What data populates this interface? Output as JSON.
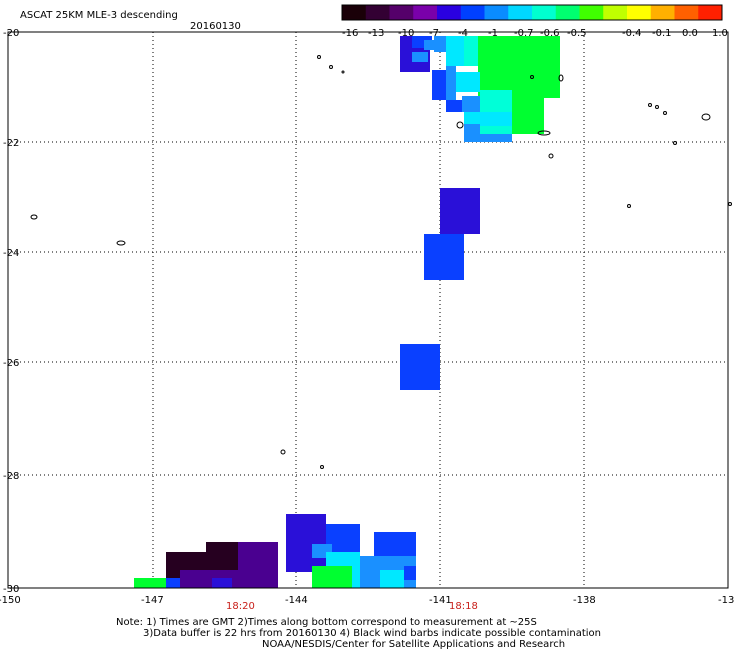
{
  "header": {
    "title": "ASCAT 25KM MLE-3 descending",
    "date": "20160130"
  },
  "colorbar": {
    "labels": [
      "-16",
      "-13",
      "-10",
      "-7",
      "-4",
      "-1",
      "-0.7",
      "-0.6",
      "-0.5",
      "-0.4",
      "-0.1",
      "0.0",
      "1.0"
    ],
    "colors": [
      "#1a0008",
      "#330033",
      "#55006a",
      "#7a00aa",
      "#2a00e0",
      "#0040ff",
      "#0a8cff",
      "#00d8ff",
      "#00ffd0",
      "#00ff70",
      "#40ff00",
      "#c0ff00",
      "#ffff00",
      "#ffb000",
      "#ff6000",
      "#ff2000"
    ]
  },
  "axes": {
    "y_labels": [
      "-20",
      "-22",
      "-24",
      "-26",
      "-28",
      "-30"
    ],
    "x_labels": [
      "-150",
      "-147",
      "-144",
      "-141",
      "-138",
      "-13"
    ],
    "time_labels": [
      "18:20",
      "18:18"
    ]
  },
  "swath_colors": {
    "dark_purple": "#260020",
    "purple": "#4a0090",
    "indigo": "#2a10d8",
    "blue": "#0a40ff",
    "sky": "#1a90ff",
    "cyan": "#00e8ff",
    "aqua": "#00ffd8",
    "green": "#00ff30",
    "lime": "#30ff00"
  },
  "footer": {
    "line1": "Note: 1) Times are GMT 2)Times along bottom correspond to measurement at ~25S",
    "line2": "3)Data buffer is 22 hrs from 20160130 4) Black wind barbs indicate possible contamination",
    "line3": "NOAA/NESDIS/Center for Satellite Applications and Research"
  }
}
